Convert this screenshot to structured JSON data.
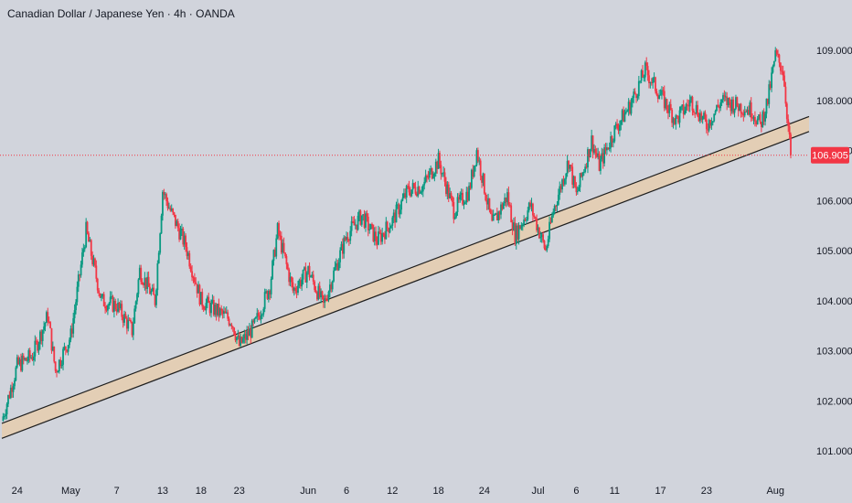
{
  "header": {
    "title": "Canadian Dollar / Japanese Yen · 4h · OANDA"
  },
  "colors": {
    "background": "#d1d4dc",
    "up": "#089981",
    "down": "#f23645",
    "text": "#131722",
    "price_line": "#f23645",
    "price_label_bg": "#f23645",
    "price_label_text": "#ffffff",
    "channel_fill": "#e6ccae",
    "channel_edge": "#1e1e1e"
  },
  "chart_data": {
    "type": "candlestick",
    "title": "Canadian Dollar / Japanese Yen · 4h · OANDA",
    "symbol": "CADJPY",
    "timeframe": "4h",
    "source": "OANDA",
    "ylim": [
      100.5,
      109.3
    ],
    "y_ticks": [
      "101.000",
      "102.000",
      "103.000",
      "104.000",
      "105.000",
      "106.000",
      "107.000",
      "108.000",
      "109.000"
    ],
    "x_ticks": [
      "24",
      "May",
      "7",
      "13",
      "18",
      "23",
      "Jun",
      "6",
      "12",
      "18",
      "24",
      "Jul",
      "6",
      "11",
      "17",
      "23",
      "Aug"
    ],
    "x_range": [
      "Apr 22",
      "Aug 3"
    ],
    "last_price": "106.905",
    "grid": false,
    "series": [
      {
        "close_path": [
          [
            "Apr 22",
            101.6
          ],
          [
            "Apr 24",
            102.7
          ],
          [
            "Apr 26",
            102.9
          ],
          [
            "Apr 28",
            103.7
          ],
          [
            "Apr 29",
            102.6
          ],
          [
            "May 1",
            103.3
          ],
          [
            "May 3",
            105.4
          ],
          [
            "May 5",
            104.0
          ],
          [
            "May 7",
            103.9
          ],
          [
            "May 9",
            103.4
          ],
          [
            "May 10",
            104.6
          ],
          [
            "May 12",
            104.0
          ],
          [
            "May 13",
            106.2
          ],
          [
            "May 14",
            105.8
          ],
          [
            "May 16",
            105.1
          ],
          [
            "May 18",
            104.0
          ],
          [
            "May 20",
            103.8
          ],
          [
            "May 22",
            103.6
          ],
          [
            "May 23",
            103.1
          ],
          [
            "May 25",
            103.5
          ],
          [
            "May 27",
            104.3
          ],
          [
            "May 28",
            105.4
          ],
          [
            "May 30",
            104.2
          ],
          [
            "Jun 1",
            104.6
          ],
          [
            "Jun 3",
            103.9
          ],
          [
            "Jun 4",
            104.4
          ],
          [
            "Jun 6",
            105.3
          ],
          [
            "Jun 8",
            105.7
          ],
          [
            "Jun 10",
            105.2
          ],
          [
            "Jun 12",
            105.6
          ],
          [
            "Jun 14",
            106.2
          ],
          [
            "Jun 16",
            106.3
          ],
          [
            "Jun 18",
            106.8
          ],
          [
            "Jun 20",
            105.8
          ],
          [
            "Jun 22",
            106.2
          ],
          [
            "Jun 23",
            107.0
          ],
          [
            "Jun 25",
            105.5
          ],
          [
            "Jun 27",
            106.1
          ],
          [
            "Jun 28",
            105.3
          ],
          [
            "Jun 30",
            105.9
          ],
          [
            "Jul 2",
            105.0
          ],
          [
            "Jul 3",
            105.8
          ],
          [
            "Jul 5",
            106.8
          ],
          [
            "Jul 6",
            106.1
          ],
          [
            "Jul 8",
            107.2
          ],
          [
            "Jul 9",
            106.7
          ],
          [
            "Jul 11",
            107.4
          ],
          [
            "Jul 13",
            107.9
          ],
          [
            "Jul 15",
            108.6
          ],
          [
            "Jul 17",
            108.1
          ],
          [
            "Jul 19",
            107.6
          ],
          [
            "Jul 21",
            108.0
          ],
          [
            "Jul 23",
            107.5
          ],
          [
            "Jul 25",
            108.0
          ],
          [
            "Jul 27",
            107.9
          ],
          [
            "Jul 29",
            107.8
          ],
          [
            "Jul 30",
            107.5
          ],
          [
            "Jul 31",
            108.0
          ],
          [
            "Aug 1",
            108.9
          ],
          [
            "Aug 2",
            108.6
          ],
          [
            "Aug 3",
            106.905
          ]
        ]
      }
    ],
    "annotations": [
      {
        "kind": "rising channel (support zone)",
        "lower_line": [
          [
            "Apr 22",
            101.25
          ],
          [
            "Aug 3",
            107.25
          ]
        ],
        "upper_line": [
          [
            "Apr 22",
            101.55
          ],
          [
            "Aug 3",
            107.55
          ]
        ]
      },
      {
        "kind": "horizontal price line (dotted)",
        "value": 106.905
      }
    ]
  }
}
